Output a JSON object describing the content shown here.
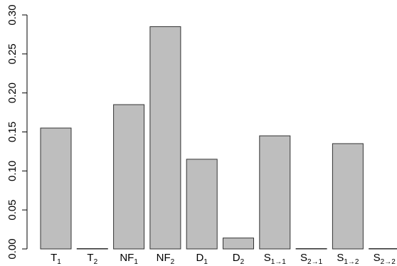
{
  "chart_data": {
    "type": "bar",
    "categories": [
      {
        "base": "T",
        "sub": "1"
      },
      {
        "base": "T",
        "sub": "2"
      },
      {
        "base": "NF",
        "sub": "1"
      },
      {
        "base": "NF",
        "sub": "2"
      },
      {
        "base": "D",
        "sub": "1"
      },
      {
        "base": "D",
        "sub": "2"
      },
      {
        "base": "S",
        "sub": "1→1"
      },
      {
        "base": "S",
        "sub": "2→1"
      },
      {
        "base": "S",
        "sub": "1→2"
      },
      {
        "base": "S",
        "sub": "2→2"
      }
    ],
    "values": [
      0.155,
      0.0005,
      0.185,
      0.285,
      0.115,
      0.014,
      0.145,
      0.0005,
      0.135,
      0.0005
    ],
    "ylim": [
      0,
      0.3
    ],
    "yticks": [
      "0.00",
      "0.05",
      "0.10",
      "0.15",
      "0.20",
      "0.25",
      "0.30"
    ],
    "title": "",
    "xlabel": "",
    "ylabel": "",
    "grid": false,
    "bar_color": "#bebebe",
    "bar_edge_color": "#333333"
  }
}
